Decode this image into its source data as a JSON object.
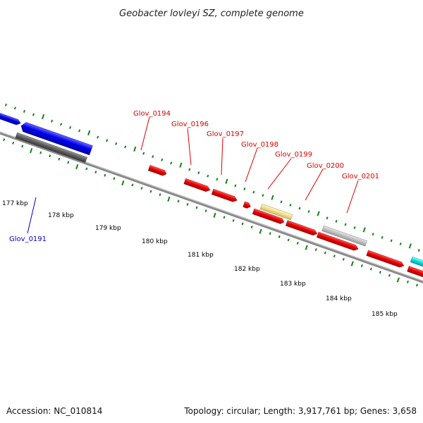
{
  "title": "Geobacter lovleyi SZ, complete genome",
  "footer": {
    "accession": "Accession: NC_010814",
    "summary": "Topology: circular; Length: 3,917,761 bp; Genes: 3,658"
  },
  "colors": {
    "backbone": "#8a8a8a",
    "tick": "#1a7f1a",
    "label_red": "#dd0000",
    "label_blue": "#0000cc"
  },
  "scale_labels": [
    "177 kbp",
    "178 kbp",
    "179 kbp",
    "180 kbp",
    "181 kbp",
    "182 kbp",
    "183 kbp",
    "184 kbp",
    "185 kbp"
  ],
  "gene_labels": [
    {
      "name": "Glov_0194",
      "color": "#dd0000"
    },
    {
      "name": "Glov_0196",
      "color": "#dd0000"
    },
    {
      "name": "Glov_0197",
      "color": "#dd0000"
    },
    {
      "name": "Glov_0198",
      "color": "#dd0000"
    },
    {
      "name": "Glov_0199",
      "color": "#dd0000"
    },
    {
      "name": "Glov_0200",
      "color": "#dd0000"
    },
    {
      "name": "Glov_0201",
      "color": "#dd0000"
    },
    {
      "name": "Glov_0191",
      "color": "#0000cc"
    }
  ],
  "features": [
    {
      "name": "feature-blue-left-edge",
      "color": "#0000ee",
      "strand": "forward"
    },
    {
      "name": "feature-blue-large",
      "color": "#0000ee",
      "strand": "reverse"
    },
    {
      "name": "feature-gray-dark",
      "color": "#555555",
      "strand": "forward"
    },
    {
      "name": "feature-red-0194",
      "color": "#ee0000",
      "strand": "forward"
    },
    {
      "name": "feature-red-0196",
      "color": "#ee0000",
      "strand": "forward"
    },
    {
      "name": "feature-red-0197",
      "color": "#ee0000",
      "strand": "forward"
    },
    {
      "name": "feature-red-small",
      "color": "#ee0000",
      "strand": "forward"
    },
    {
      "name": "feature-yellow-0199",
      "color": "#f0e08c",
      "strand": "forward"
    },
    {
      "name": "feature-red-0198",
      "color": "#ee0000",
      "strand": "forward"
    },
    {
      "name": "feature-red-0200",
      "color": "#ee0000",
      "strand": "forward"
    },
    {
      "name": "feature-gray-light-0201",
      "color": "#bbbbbb",
      "strand": "forward"
    },
    {
      "name": "feature-red-lower",
      "color": "#ee0000",
      "strand": "forward"
    },
    {
      "name": "feature-red-right",
      "color": "#ee0000",
      "strand": "forward"
    },
    {
      "name": "feature-cyan-right",
      "color": "#00dddd",
      "strand": "forward"
    },
    {
      "name": "feature-red-far-right",
      "color": "#ee0000",
      "strand": "forward"
    }
  ]
}
